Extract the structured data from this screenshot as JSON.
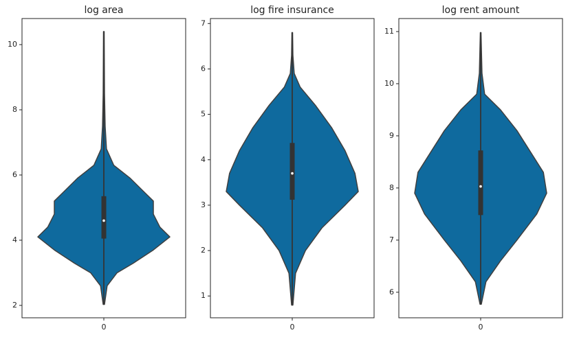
{
  "chart_data": [
    {
      "type": "violin",
      "title": "log area",
      "categories": [
        "0"
      ],
      "color": "#0f6a9e",
      "ylim": [
        1.62,
        10.8
      ],
      "yticks": [
        2,
        4,
        6,
        8,
        10
      ],
      "min": 2.03,
      "q1": 4.05,
      "median": 4.6,
      "q3": 5.35,
      "max": 10.4,
      "kde_y": [
        2.03,
        2.6,
        3.0,
        3.3,
        3.7,
        4.1,
        4.4,
        4.8,
        5.2,
        5.5,
        5.9,
        6.3,
        6.8,
        7.5,
        8.5,
        10.4
      ],
      "kde_width": [
        0.01,
        0.05,
        0.2,
        0.45,
        0.75,
        1.0,
        0.85,
        0.75,
        0.75,
        0.6,
        0.4,
        0.15,
        0.04,
        0.02,
        0.01,
        0.005
      ]
    },
    {
      "type": "violin",
      "title": "log fire insurance",
      "categories": [
        "0"
      ],
      "color": "#0f6a9e",
      "ylim": [
        0.52,
        7.11
      ],
      "yticks": [
        1,
        2,
        3,
        4,
        5,
        6,
        7
      ],
      "min": 0.8,
      "q1": 3.12,
      "median": 3.7,
      "q3": 4.37,
      "max": 6.8,
      "kde_y": [
        0.8,
        1.5,
        2.0,
        2.5,
        3.0,
        3.3,
        3.7,
        4.2,
        4.7,
        5.2,
        5.6,
        5.9,
        6.3,
        6.8
      ],
      "kde_width": [
        0.01,
        0.05,
        0.2,
        0.45,
        0.8,
        1.0,
        0.95,
        0.8,
        0.6,
        0.35,
        0.12,
        0.03,
        0.01,
        0.005
      ]
    },
    {
      "type": "violin",
      "title": "log rent amount",
      "categories": [
        "0"
      ],
      "color": "#0f6a9e",
      "ylim": [
        5.51,
        11.25
      ],
      "yticks": [
        6,
        7,
        8,
        9,
        10,
        11
      ],
      "min": 5.77,
      "q1": 7.48,
      "median": 8.03,
      "q3": 8.72,
      "max": 10.98,
      "kde_y": [
        5.77,
        6.2,
        6.6,
        7.0,
        7.5,
        7.9,
        8.3,
        8.7,
        9.1,
        9.5,
        9.8,
        10.2,
        10.98
      ],
      "kde_width": [
        0.01,
        0.08,
        0.3,
        0.55,
        0.85,
        1.0,
        0.95,
        0.75,
        0.55,
        0.3,
        0.06,
        0.02,
        0.005
      ]
    }
  ]
}
